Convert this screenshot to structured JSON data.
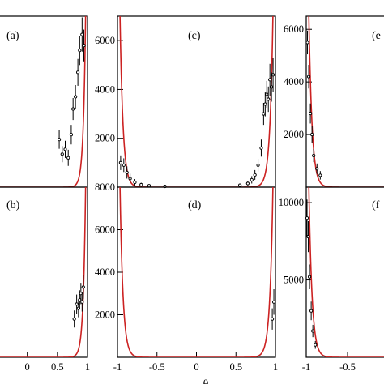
{
  "chart_data": [
    {
      "id": "a",
      "panel_label": "(a)",
      "type": "scatter",
      "xlim": [
        -0.48,
        1.0
      ],
      "ylim": [
        0,
        7000
      ],
      "xticks": [],
      "yticks": [],
      "curve_side": "right",
      "points": [
        {
          "x": 0.53,
          "y": 1950,
          "err": 380
        },
        {
          "x": 0.58,
          "y": 1350,
          "err": 330
        },
        {
          "x": 0.63,
          "y": 1550,
          "err": 350
        },
        {
          "x": 0.68,
          "y": 1200,
          "err": 330
        },
        {
          "x": 0.73,
          "y": 2150,
          "err": 400
        },
        {
          "x": 0.76,
          "y": 3200,
          "err": 450
        },
        {
          "x": 0.8,
          "y": 3700,
          "err": 480
        },
        {
          "x": 0.84,
          "y": 4700,
          "err": 550
        },
        {
          "x": 0.87,
          "y": 5600,
          "err": 600
        },
        {
          "x": 0.91,
          "y": 6250,
          "err": 700
        },
        {
          "x": 0.94,
          "y": 5800,
          "err": 650
        }
      ]
    },
    {
      "id": "b",
      "panel_label": "(b)",
      "type": "scatter",
      "xlim": [
        -0.48,
        1.0
      ],
      "ylim": [
        0,
        8000
      ],
      "xticks": [
        0,
        0.5,
        1
      ],
      "yticks": [],
      "curve_side": "right",
      "points": [
        {
          "x": 0.78,
          "y": 1800,
          "err": 400
        },
        {
          "x": 0.82,
          "y": 2500,
          "err": 450
        },
        {
          "x": 0.85,
          "y": 2300,
          "err": 420
        },
        {
          "x": 0.87,
          "y": 2700,
          "err": 450
        },
        {
          "x": 0.89,
          "y": 3000,
          "err": 500
        },
        {
          "x": 0.91,
          "y": 2600,
          "err": 450
        },
        {
          "x": 0.93,
          "y": 3300,
          "err": 550
        }
      ]
    },
    {
      "id": "c",
      "panel_label": "(c)",
      "type": "scatter",
      "xlim": [
        -1.0,
        1.0
      ],
      "ylim": [
        0,
        7000
      ],
      "xticks": [],
      "yticks": [
        2000,
        4000,
        6000
      ],
      "curve_side": "both",
      "points": [
        {
          "x": -0.96,
          "y": 1000,
          "err": 300
        },
        {
          "x": -0.92,
          "y": 900,
          "err": 280
        },
        {
          "x": -0.88,
          "y": 600,
          "err": 250
        },
        {
          "x": -0.84,
          "y": 350,
          "err": 200
        },
        {
          "x": -0.78,
          "y": 200,
          "err": 130
        },
        {
          "x": -0.7,
          "y": 100,
          "err": 80
        },
        {
          "x": -0.6,
          "y": 60,
          "err": 50
        },
        {
          "x": -0.4,
          "y": 30,
          "err": 30
        },
        {
          "x": 0.55,
          "y": 80,
          "err": 60
        },
        {
          "x": 0.65,
          "y": 150,
          "err": 100
        },
        {
          "x": 0.7,
          "y": 300,
          "err": 150
        },
        {
          "x": 0.74,
          "y": 500,
          "err": 200
        },
        {
          "x": 0.78,
          "y": 900,
          "err": 260
        },
        {
          "x": 0.82,
          "y": 1600,
          "err": 350
        },
        {
          "x": 0.85,
          "y": 3000,
          "err": 450
        },
        {
          "x": 0.87,
          "y": 3400,
          "err": 500
        },
        {
          "x": 0.89,
          "y": 3800,
          "err": 550
        },
        {
          "x": 0.91,
          "y": 3600,
          "err": 520
        },
        {
          "x": 0.93,
          "y": 4400,
          "err": 650
        },
        {
          "x": 0.95,
          "y": 4100,
          "err": 600
        },
        {
          "x": 0.97,
          "y": 4600,
          "err": 700
        }
      ]
    },
    {
      "id": "d",
      "panel_label": "(d)",
      "type": "scatter",
      "xlim": [
        -1.0,
        1.0
      ],
      "ylim": [
        0,
        8000
      ],
      "xticks": [
        -1,
        -0.5,
        0,
        0.5,
        1
      ],
      "yticks": [
        2000,
        4000,
        6000,
        8000
      ],
      "curve_side": "both",
      "points": [
        {
          "x": 0.96,
          "y": 1800,
          "err": 500
        },
        {
          "x": 0.98,
          "y": 2600,
          "err": 600
        }
      ]
    },
    {
      "id": "e",
      "panel_label": "(e",
      "type": "scatter",
      "xlim": [
        -1.0,
        0.0
      ],
      "ylim": [
        0,
        6500
      ],
      "xticks": [],
      "yticks": [
        2000,
        4000,
        6000
      ],
      "curve_side": "left",
      "points": [
        {
          "x": -0.985,
          "y": 5500,
          "err": 450
        },
        {
          "x": -0.97,
          "y": 4200,
          "err": 450
        },
        {
          "x": -0.95,
          "y": 2800,
          "err": 380
        },
        {
          "x": -0.93,
          "y": 2000,
          "err": 330
        },
        {
          "x": -0.91,
          "y": 1200,
          "err": 250
        },
        {
          "x": -0.87,
          "y": 700,
          "err": 200
        },
        {
          "x": -0.83,
          "y": 450,
          "err": 160
        }
      ]
    },
    {
      "id": "f",
      "panel_label": "(f",
      "type": "scatter",
      "xlim": [
        -1.0,
        0.0
      ],
      "ylim": [
        0,
        11000
      ],
      "xticks": [
        -1,
        -0.5
      ],
      "yticks": [
        5000,
        10000
      ],
      "curve_side": "left",
      "points": [
        {
          "x": -0.99,
          "y": 9000,
          "err": 1200
        },
        {
          "x": -0.975,
          "y": 7800,
          "err": 1000
        },
        {
          "x": -0.96,
          "y": 5200,
          "err": 800
        },
        {
          "x": -0.94,
          "y": 3000,
          "err": 600
        },
        {
          "x": -0.92,
          "y": 1700,
          "err": 400
        },
        {
          "x": -0.89,
          "y": 800,
          "err": 250
        }
      ]
    }
  ],
  "x_axis_symbol": "θ"
}
